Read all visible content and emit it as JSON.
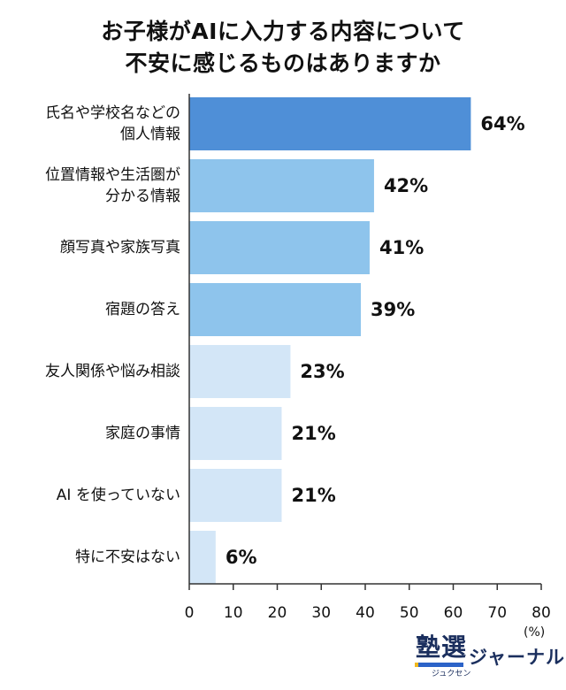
{
  "chart_data": {
    "type": "bar",
    "orientation": "horizontal",
    "title_lines": [
      "お子様がAIに入力する内容について",
      "不安に感じるものはありますか"
    ],
    "categories": [
      [
        "氏名や学校名などの",
        "個人情報"
      ],
      [
        "位置情報や生活圏が",
        "分かる情報"
      ],
      [
        "顔写真や家族写真"
      ],
      [
        "宿題の答え"
      ],
      [
        "友人関係や悩み相談"
      ],
      [
        "家庭の事情"
      ],
      [
        "AI を使っていない"
      ],
      [
        "特に不安はない"
      ]
    ],
    "values": [
      64,
      42,
      41,
      39,
      23,
      21,
      21,
      6
    ],
    "value_labels": [
      "64%",
      "42%",
      "41%",
      "39%",
      "23%",
      "21%",
      "21%",
      "6%"
    ],
    "bar_colors": [
      "#4f8fd7",
      "#8ec4ec",
      "#8ec4ec",
      "#8ec4ec",
      "#d3e6f7",
      "#d3e6f7",
      "#d3e6f7",
      "#d3e6f7"
    ],
    "xlim": [
      0,
      80
    ],
    "x_ticks": [
      0,
      10,
      20,
      30,
      40,
      50,
      60,
      70,
      80
    ],
    "x_tick_labels": [
      "0",
      "10",
      "20",
      "30",
      "40",
      "50",
      "60",
      "70",
      "80"
    ],
    "unit_label": "(%)",
    "grid": false
  },
  "logo": {
    "kanji": "塾選",
    "kana": "ジュクセン",
    "journal": "ジャーナル"
  }
}
